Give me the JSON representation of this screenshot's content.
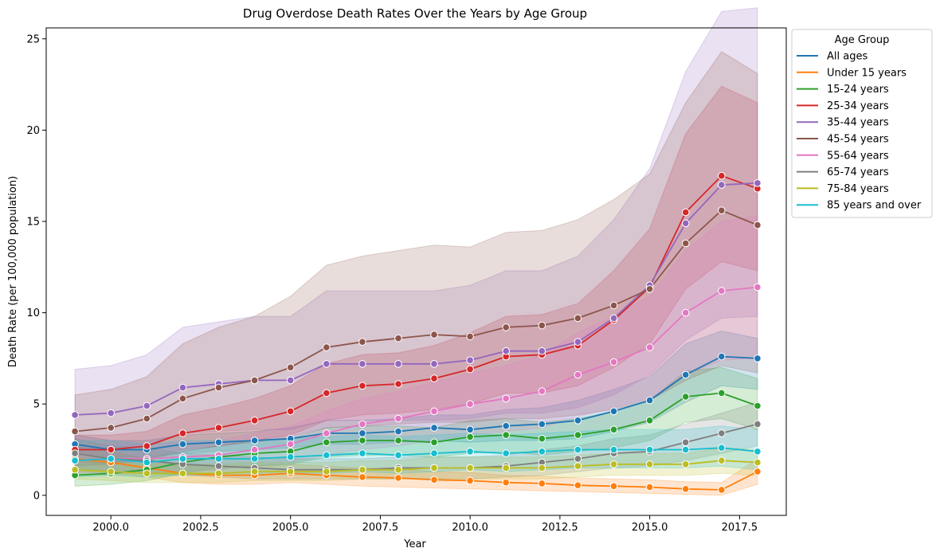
{
  "chart_data": {
    "type": "line",
    "title": "Drug Overdose Death Rates Over the Years by Age Group",
    "xlabel": "Year",
    "ylabel": "Death Rate (per 100,000 population)",
    "xlim": [
      1998.2,
      2018.8
    ],
    "ylim": [
      -1.1,
      25.6
    ],
    "x_ticks": [
      2000.0,
      2002.5,
      2005.0,
      2007.5,
      2010.0,
      2012.5,
      2015.0,
      2017.5
    ],
    "x_tick_labels": [
      "2000.0",
      "2002.5",
      "2005.0",
      "2007.5",
      "2010.0",
      "2012.5",
      "2015.0",
      "2017.5"
    ],
    "y_ticks": [
      0,
      5,
      10,
      15,
      20,
      25
    ],
    "y_tick_labels": [
      "0",
      "5",
      "10",
      "15",
      "20",
      "25"
    ],
    "grid": false,
    "legend": {
      "title": "Age Group",
      "placement": "outside-top-right"
    },
    "x": [
      1999,
      2000,
      2001,
      2002,
      2003,
      2004,
      2005,
      2006,
      2007,
      2008,
      2009,
      2010,
      2011,
      2012,
      2013,
      2014,
      2015,
      2016,
      2017,
      2018
    ],
    "series": [
      {
        "name": "All ages",
        "color": "#1f77b4",
        "values": [
          2.8,
          2.5,
          2.5,
          2.8,
          2.9,
          3.0,
          3.1,
          3.4,
          3.4,
          3.5,
          3.7,
          3.6,
          3.8,
          3.9,
          4.1,
          4.6,
          5.2,
          6.6,
          7.6,
          7.5
        ],
        "lower": [
          2.4,
          2.1,
          2.1,
          2.3,
          2.4,
          2.5,
          2.6,
          2.8,
          2.8,
          2.9,
          3.0,
          2.9,
          3.0,
          3.0,
          3.1,
          3.5,
          4.0,
          5.1,
          6.0,
          5.8
        ],
        "upper": [
          3.3,
          3.0,
          3.0,
          3.3,
          3.4,
          3.5,
          3.7,
          4.1,
          4.1,
          4.2,
          4.4,
          4.4,
          4.7,
          4.8,
          5.2,
          5.8,
          6.5,
          8.3,
          9.0,
          8.6
        ]
      },
      {
        "name": "Under 15 years",
        "color": "#ff7f0e",
        "values": [
          2.0,
          1.8,
          1.5,
          1.2,
          1.1,
          1.1,
          1.2,
          1.1,
          1.0,
          0.95,
          0.85,
          0.8,
          0.7,
          0.65,
          0.55,
          0.5,
          0.45,
          0.35,
          0.3,
          1.3
        ],
        "lower": [
          1.3,
          1.2,
          1.0,
          0.7,
          0.6,
          0.6,
          0.7,
          0.6,
          0.5,
          0.45,
          0.4,
          0.35,
          0.3,
          0.25,
          0.2,
          0.15,
          0.1,
          0.05,
          0.0,
          0.6
        ],
        "upper": [
          2.7,
          2.4,
          2.0,
          1.7,
          1.6,
          1.6,
          1.7,
          1.6,
          1.5,
          1.45,
          1.3,
          1.25,
          1.1,
          1.05,
          0.95,
          0.9,
          0.85,
          0.75,
          0.7,
          2.0
        ]
      },
      {
        "name": "15-24 years",
        "color": "#2ca02c",
        "values": [
          1.1,
          1.2,
          1.4,
          1.8,
          2.1,
          2.3,
          2.4,
          2.9,
          3.0,
          3.0,
          2.9,
          3.2,
          3.3,
          3.1,
          3.3,
          3.6,
          4.1,
          5.4,
          5.6,
          4.9
        ],
        "lower": [
          0.5,
          0.6,
          0.8,
          1.2,
          1.5,
          1.6,
          1.7,
          2.1,
          2.2,
          2.2,
          2.1,
          2.3,
          2.4,
          2.2,
          2.4,
          2.6,
          3.0,
          4.0,
          4.2,
          3.6
        ],
        "upper": [
          1.7,
          1.8,
          2.0,
          2.4,
          2.7,
          3.0,
          3.1,
          3.7,
          3.8,
          3.8,
          3.7,
          4.1,
          4.2,
          4.0,
          4.2,
          4.6,
          5.2,
          6.8,
          7.0,
          6.4
        ]
      },
      {
        "name": "25-34 years",
        "color": "#d62728",
        "values": [
          2.5,
          2.5,
          2.7,
          3.4,
          3.7,
          4.1,
          4.6,
          5.6,
          6.0,
          6.1,
          6.4,
          6.9,
          7.6,
          7.7,
          8.2,
          9.6,
          11.4,
          15.5,
          17.5,
          16.8
        ],
        "lower": [
          1.8,
          1.8,
          2.0,
          2.5,
          2.7,
          3.0,
          3.3,
          4.1,
          4.4,
          4.5,
          4.7,
          5.0,
          5.6,
          5.6,
          6.0,
          7.0,
          8.3,
          11.3,
          12.8,
          12.3
        ],
        "upper": [
          3.3,
          3.3,
          3.5,
          4.4,
          4.8,
          5.3,
          6.0,
          7.2,
          7.7,
          7.8,
          8.2,
          8.9,
          9.8,
          9.9,
          10.5,
          12.3,
          14.6,
          19.8,
          22.4,
          21.5
        ]
      },
      {
        "name": "35-44 years",
        "color": "#9467bd",
        "values": [
          4.4,
          4.5,
          4.9,
          5.9,
          6.1,
          6.3,
          6.3,
          7.2,
          7.2,
          7.2,
          7.2,
          7.4,
          7.9,
          7.9,
          8.4,
          9.7,
          11.5,
          14.9,
          17.0,
          17.1
        ],
        "lower": [
          2.5,
          2.6,
          2.8,
          3.4,
          3.5,
          3.6,
          3.6,
          4.1,
          4.1,
          4.1,
          4.1,
          4.2,
          4.5,
          4.5,
          4.8,
          5.5,
          6.6,
          8.5,
          9.7,
          9.8
        ],
        "upper": [
          6.9,
          7.1,
          7.7,
          9.2,
          9.5,
          9.8,
          9.8,
          11.2,
          11.2,
          11.2,
          11.2,
          11.5,
          12.3,
          12.3,
          13.1,
          15.1,
          17.9,
          23.2,
          26.5,
          26.7
        ]
      },
      {
        "name": "45-54 years",
        "color": "#8c564b",
        "values": [
          3.5,
          3.7,
          4.2,
          5.3,
          5.9,
          6.3,
          7.0,
          8.1,
          8.4,
          8.6,
          8.8,
          8.7,
          9.2,
          9.3,
          9.7,
          10.4,
          11.3,
          13.8,
          15.6,
          14.8
        ],
        "lower": [
          1.6,
          1.7,
          1.9,
          2.4,
          2.7,
          2.9,
          3.2,
          3.7,
          3.8,
          3.9,
          4.0,
          4.0,
          4.2,
          4.2,
          4.4,
          4.7,
          5.2,
          6.3,
          7.1,
          6.7
        ],
        "upper": [
          5.5,
          5.8,
          6.5,
          8.3,
          9.2,
          9.8,
          10.9,
          12.6,
          13.1,
          13.4,
          13.7,
          13.6,
          14.4,
          14.5,
          15.1,
          16.2,
          17.6,
          21.5,
          24.3,
          23.1
        ]
      },
      {
        "name": "55-64 years",
        "color": "#e377c2",
        "values": [
          1.9,
          2.0,
          2.0,
          2.1,
          2.2,
          2.5,
          2.8,
          3.4,
          3.9,
          4.2,
          4.6,
          5.0,
          5.3,
          5.7,
          6.6,
          7.3,
          8.1,
          10.0,
          11.2,
          11.4
        ],
        "lower": [
          1.2,
          1.2,
          1.2,
          1.3,
          1.4,
          1.6,
          1.8,
          2.2,
          2.5,
          2.7,
          3.0,
          3.3,
          3.5,
          3.7,
          4.3,
          4.8,
          5.3,
          6.6,
          7.4,
          7.5
        ],
        "upper": [
          2.6,
          2.8,
          2.8,
          2.9,
          3.0,
          3.4,
          3.8,
          4.6,
          5.3,
          5.7,
          6.2,
          6.7,
          7.1,
          7.7,
          8.9,
          9.8,
          10.9,
          13.4,
          15.0,
          15.3
        ]
      },
      {
        "name": "65-74 years",
        "color": "#7f7f7f",
        "values": [
          2.3,
          2.0,
          1.9,
          1.7,
          1.6,
          1.5,
          1.4,
          1.4,
          1.4,
          1.5,
          1.5,
          1.5,
          1.6,
          1.8,
          2.0,
          2.3,
          2.4,
          2.9,
          3.4,
          3.9
        ],
        "lower": [
          1.5,
          1.3,
          1.2,
          1.1,
          1.0,
          0.9,
          0.9,
          0.9,
          0.9,
          0.9,
          0.9,
          0.9,
          1.0,
          1.1,
          1.3,
          1.5,
          1.6,
          1.9,
          2.3,
          2.7
        ],
        "upper": [
          3.1,
          2.7,
          2.6,
          2.3,
          2.2,
          2.1,
          2.0,
          2.0,
          2.0,
          2.1,
          2.1,
          2.1,
          2.2,
          2.5,
          2.7,
          3.1,
          3.3,
          3.9,
          4.5,
          5.1
        ]
      },
      {
        "name": "75-84 years",
        "color": "#bcbd22",
        "values": [
          1.4,
          1.3,
          1.2,
          1.2,
          1.2,
          1.3,
          1.3,
          1.3,
          1.4,
          1.4,
          1.5,
          1.5,
          1.5,
          1.5,
          1.6,
          1.7,
          1.7,
          1.7,
          1.9,
          1.8
        ],
        "lower": [
          0.9,
          0.8,
          0.7,
          0.7,
          0.7,
          0.8,
          0.8,
          0.8,
          0.9,
          0.9,
          0.9,
          0.9,
          0.9,
          0.9,
          1.0,
          1.1,
          1.1,
          1.1,
          1.2,
          1.1
        ],
        "upper": [
          1.9,
          1.8,
          1.7,
          1.7,
          1.7,
          1.8,
          1.8,
          1.8,
          1.9,
          1.9,
          2.1,
          2.1,
          2.1,
          2.1,
          2.2,
          2.3,
          2.3,
          2.3,
          2.6,
          2.5
        ]
      },
      {
        "name": "85 years and over",
        "color": "#17becf",
        "values": [
          1.9,
          2.0,
          1.8,
          2.0,
          2.0,
          2.0,
          2.1,
          2.2,
          2.3,
          2.2,
          2.3,
          2.4,
          2.3,
          2.4,
          2.5,
          2.5,
          2.5,
          2.5,
          2.6,
          2.4
        ],
        "lower": [
          1.0,
          1.1,
          1.0,
          1.1,
          1.1,
          1.1,
          1.2,
          1.2,
          1.3,
          1.2,
          1.3,
          1.4,
          1.3,
          1.4,
          1.5,
          1.5,
          1.5,
          1.5,
          1.6,
          1.4
        ],
        "upper": [
          3.0,
          3.0,
          2.8,
          3.0,
          3.0,
          3.0,
          3.1,
          3.2,
          3.3,
          3.2,
          3.3,
          3.4,
          3.3,
          3.4,
          3.5,
          3.6,
          3.6,
          3.6,
          3.8,
          3.6
        ]
      }
    ]
  }
}
